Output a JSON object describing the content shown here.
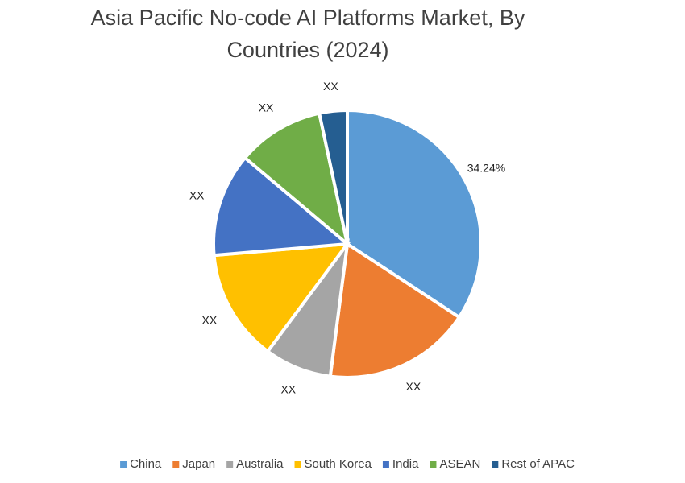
{
  "chart_data": {
    "type": "pie",
    "title": [
      "Asia Pacific No-code AI Platforms Market, By",
      "Countries (2024)"
    ],
    "categories": [
      "China",
      "Japan",
      "Australia",
      "South Korea",
      "India",
      "ASEAN",
      "Rest of APAC"
    ],
    "values": [
      34.24,
      17.8,
      8.1,
      13.5,
      12.5,
      10.5,
      3.36
    ],
    "value_labels": [
      "34.24%",
      "XX",
      "XX",
      "XX",
      "XX",
      "XX",
      "XX"
    ],
    "colors": [
      "#5b9bd5",
      "#ed7d31",
      "#a5a5a5",
      "#ffc000",
      "#4472c4",
      "#70ad47",
      "#255e91"
    ],
    "legend": "bottom"
  }
}
